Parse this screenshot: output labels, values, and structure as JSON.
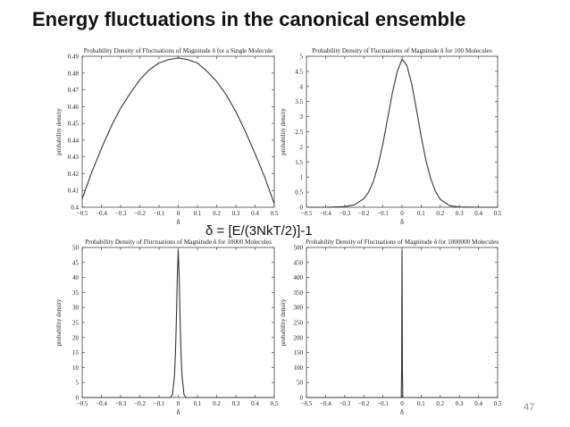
{
  "slide": {
    "title": "Energy fluctuations in the canonical ensemble",
    "formula": "δ = [E/(3NkT/2)]-1",
    "page_number": "47"
  },
  "chart_data": [
    {
      "type": "line",
      "title": "Probability Density of Fluctuations of Magnitude δ for a Single Molecule",
      "xlabel": "δ",
      "ylabel": "probability density",
      "xlim": [
        -0.5,
        0.5
      ],
      "ylim": [
        0.4,
        0.49
      ],
      "xticks": [
        -0.5,
        -0.4,
        -0.3,
        -0.2,
        -0.1,
        0,
        0.1,
        0.2,
        0.3,
        0.4,
        0.5
      ],
      "xtick_labels": [
        "−0.5",
        "−0.4",
        "−0.3",
        "−0.2",
        "−0.1",
        "0",
        "0.1",
        "0.2",
        "0.3",
        "0.4",
        "0.5"
      ],
      "yticks": [
        0.4,
        0.41,
        0.42,
        0.43,
        0.44,
        0.45,
        0.46,
        0.47,
        0.48,
        0.49
      ],
      "ytick_labels": [
        "0.4",
        "0.41",
        "0.42",
        "0.43",
        "0.44",
        "0.45",
        "0.46",
        "0.47",
        "0.48",
        "0.49"
      ],
      "grid": false,
      "series": [
        {
          "x": [
            -0.5,
            -0.45,
            -0.4,
            -0.35,
            -0.3,
            -0.25,
            -0.2,
            -0.15,
            -0.1,
            -0.05,
            0,
            0.05,
            0.1,
            0.15,
            0.2,
            0.25,
            0.3,
            0.35,
            0.4,
            0.45,
            0.5
          ],
          "y": [
            0.405,
            0.421,
            0.435,
            0.448,
            0.459,
            0.468,
            0.476,
            0.482,
            0.486,
            0.488,
            0.489,
            0.488,
            0.486,
            0.481,
            0.475,
            0.467,
            0.457,
            0.445,
            0.432,
            0.418,
            0.402
          ]
        }
      ]
    },
    {
      "type": "line",
      "title": "Probability Density of Fluctuations of Magnitude δ for 100 Molecules",
      "xlabel": "δ",
      "ylabel": "probability density",
      "xlim": [
        -0.5,
        0.5
      ],
      "ylim": [
        0,
        5
      ],
      "xticks": [
        -0.5,
        -0.4,
        -0.3,
        -0.2,
        -0.1,
        0,
        0.1,
        0.2,
        0.3,
        0.4,
        0.5
      ],
      "xtick_labels": [
        "−0.5",
        "−0.4",
        "−0.3",
        "−0.2",
        "−0.1",
        "0",
        "0.1",
        "0.2",
        "0.3",
        "0.4",
        "0.5"
      ],
      "yticks": [
        0,
        0.5,
        1,
        1.5,
        2,
        2.5,
        3,
        3.5,
        4,
        4.5,
        5
      ],
      "ytick_labels": [
        "0",
        "0.5",
        "1",
        "1.5",
        "2",
        "2.5",
        "3",
        "3.5",
        "4",
        "4.5",
        "5"
      ],
      "grid": false,
      "series": [
        {
          "x": [
            -0.5,
            -0.4,
            -0.3,
            -0.25,
            -0.2,
            -0.175,
            -0.15,
            -0.125,
            -0.1,
            -0.075,
            -0.05,
            -0.025,
            0,
            0.025,
            0.05,
            0.075,
            0.1,
            0.125,
            0.15,
            0.175,
            0.2,
            0.25,
            0.3,
            0.4,
            0.5
          ],
          "y": [
            0,
            0,
            0.02,
            0.08,
            0.28,
            0.5,
            0.85,
            1.4,
            2.1,
            2.95,
            3.8,
            4.5,
            4.9,
            4.7,
            4.1,
            3.25,
            2.35,
            1.55,
            0.95,
            0.52,
            0.26,
            0.05,
            0.01,
            0,
            0
          ]
        }
      ]
    },
    {
      "type": "line",
      "title": "Probability Density of Fluctuations of Magnitude δ for 10000 Molecules",
      "xlabel": "δ",
      "ylabel": "probability density",
      "xlim": [
        -0.5,
        0.5
      ],
      "ylim": [
        0,
        50
      ],
      "xticks": [
        -0.5,
        -0.4,
        -0.3,
        -0.2,
        -0.1,
        0,
        0.1,
        0.2,
        0.3,
        0.4,
        0.5
      ],
      "xtick_labels": [
        "−0.5",
        "−0.4",
        "−0.3",
        "−0.2",
        "−0.1",
        "0",
        "0.1",
        "0.2",
        "0.3",
        "0.4",
        "0.5"
      ],
      "yticks": [
        0,
        5,
        10,
        15,
        20,
        25,
        30,
        35,
        40,
        45,
        50
      ],
      "ytick_labels": [
        "0",
        "5",
        "10",
        "15",
        "20",
        "25",
        "30",
        "35",
        "40",
        "45",
        "50"
      ],
      "grid": false,
      "series": [
        {
          "x": [
            -0.5,
            -0.04,
            -0.03,
            -0.02,
            -0.015,
            -0.01,
            -0.005,
            0,
            0.005,
            0.01,
            0.015,
            0.02,
            0.03,
            0.04,
            0.5
          ],
          "y": [
            0,
            0,
            1,
            7,
            14,
            25,
            40,
            49,
            40,
            25,
            14,
            7,
            1,
            0,
            0
          ]
        }
      ]
    },
    {
      "type": "line",
      "title": "Probability Density of Fluctuations of Magnitude δ for 1000000 Molecules",
      "xlabel": "δ",
      "ylabel": "probability density",
      "xlim": [
        -0.5,
        0.5
      ],
      "ylim": [
        0,
        500
      ],
      "xticks": [
        -0.5,
        -0.4,
        -0.3,
        -0.2,
        -0.1,
        0,
        0.1,
        0.2,
        0.3,
        0.4,
        0.5
      ],
      "xtick_labels": [
        "−0.5",
        "−0.4",
        "−0.3",
        "−0.2",
        "−0.1",
        "0",
        "0.1",
        "0.2",
        "0.3",
        "0.4",
        "0.5"
      ],
      "yticks": [
        0,
        50,
        100,
        150,
        200,
        250,
        300,
        350,
        400,
        450,
        500
      ],
      "ytick_labels": [
        "0",
        "50",
        "100",
        "150",
        "200",
        "250",
        "300",
        "350",
        "400",
        "450",
        "500"
      ],
      "grid": false,
      "series": [
        {
          "x": [
            -0.5,
            -0.004,
            -0.002,
            -0.001,
            0,
            0.001,
            0.002,
            0.004,
            0.5
          ],
          "y": [
            0,
            0,
            100,
            330,
            490,
            330,
            100,
            0,
            0
          ]
        }
      ]
    }
  ]
}
